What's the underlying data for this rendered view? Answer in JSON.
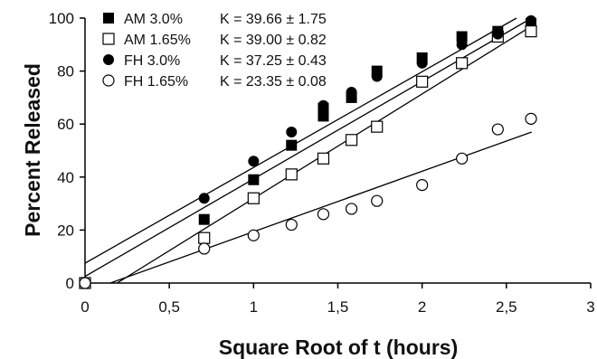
{
  "chart_data": {
    "type": "scatter",
    "xlabel": "Square Root of t (hours)",
    "ylabel": "Percent Released",
    "xlim": [
      0,
      3
    ],
    "ylim": [
      0,
      100
    ],
    "x_ticks": [
      "0",
      "0,5",
      "1",
      "1,5",
      "2",
      "2,5",
      "3"
    ],
    "x_tick_values": [
      0,
      0.5,
      1,
      1.5,
      2,
      2.5,
      3
    ],
    "y_ticks": [
      "0",
      "20",
      "40",
      "60",
      "80",
      "100"
    ],
    "y_tick_values": [
      0,
      20,
      40,
      60,
      80,
      100
    ],
    "grid": false,
    "legend_position": "top-left",
    "series": [
      {
        "name": "AM 3.0%",
        "k_label": "K = 39.66 ± 1.75",
        "marker": "filled-square",
        "x": [
          0,
          0.707,
          1,
          1.225,
          1.414,
          1.414,
          1.581,
          1.732,
          2,
          2.236,
          2.449,
          2.646
        ],
        "y": [
          0,
          24,
          39,
          52,
          63,
          66,
          70,
          80,
          85,
          93,
          95,
          98
        ],
        "fit": {
          "x": [
            0,
            2.65
          ],
          "y": [
            2.5,
            100
          ]
        }
      },
      {
        "name": "AM 1.65%",
        "k_label": "K = 39.00 ± 0.82",
        "marker": "open-square",
        "x": [
          0,
          0.707,
          1,
          1.225,
          1.414,
          1.581,
          1.732,
          2,
          2.236,
          2.449,
          2.646
        ],
        "y": [
          0,
          17,
          32,
          41,
          47,
          54,
          59,
          76,
          83,
          93,
          95
        ],
        "fit": {
          "x": [
            0.19,
            2.65
          ],
          "y": [
            0,
            97
          ]
        }
      },
      {
        "name": "FH 3.0%",
        "k_label": "K = 37.25 ± 0.43",
        "marker": "filled-circle",
        "x": [
          0.707,
          1,
          1.225,
          1.414,
          1.581,
          1.732,
          2,
          2.236,
          2.449,
          2.646
        ],
        "y": [
          32,
          46,
          57,
          67,
          72,
          78,
          83,
          90,
          94,
          99
        ],
        "fit": {
          "x": [
            0,
            2.56
          ],
          "y": [
            7.5,
            100
          ]
        }
      },
      {
        "name": "FH 1.65%",
        "k_label": "K = 23.35 ± 0.08",
        "marker": "open-circle",
        "x": [
          0,
          0.707,
          1,
          1.225,
          1.414,
          1.581,
          1.732,
          2,
          2.236,
          2.449,
          2.646
        ],
        "y": [
          0,
          13,
          18,
          22,
          26,
          28,
          31,
          37,
          47,
          58,
          62
        ],
        "fit": {
          "x": [
            0.15,
            2.65
          ],
          "y": [
            0,
            57
          ]
        }
      }
    ]
  }
}
